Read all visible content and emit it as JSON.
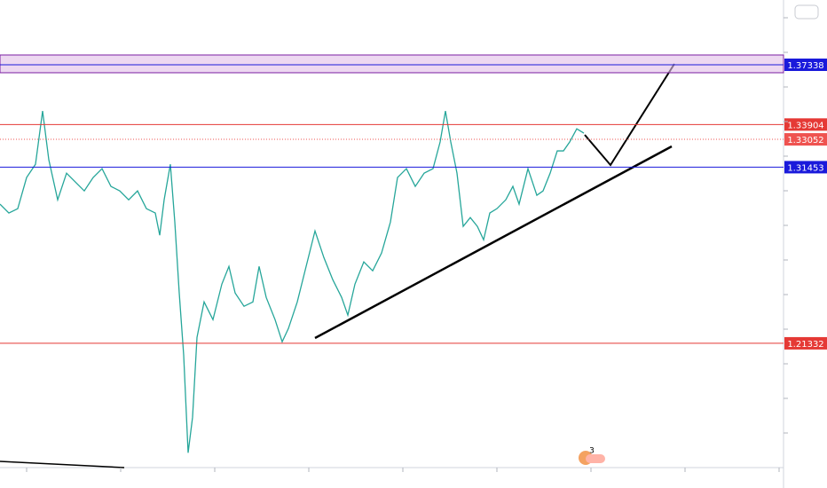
{
  "chart_data": {
    "type": "line",
    "x": [
      0,
      10,
      20,
      30,
      40,
      48,
      55,
      65,
      75,
      85,
      95,
      105,
      115,
      125,
      135,
      145,
      155,
      165,
      175,
      180,
      185,
      192,
      197,
      202,
      207,
      212,
      217,
      222,
      230,
      240,
      250,
      258,
      265,
      275,
      285,
      292,
      300,
      310,
      318,
      325,
      335,
      345,
      355,
      365,
      375,
      385,
      392,
      400,
      410,
      420,
      430,
      440,
      448,
      458,
      468,
      478,
      488,
      496,
      502,
      508,
      515,
      522,
      530,
      538,
      545,
      552,
      560,
      570,
      578,
      585,
      595,
      605,
      612,
      620,
      628,
      635,
      642,
      650,
      658
    ],
    "series": [
      {
        "color": "#26a69a",
        "values": [
          1.2933,
          1.2882,
          1.2907,
          1.3086,
          1.3162,
          1.3468,
          1.3188,
          1.2958,
          1.3111,
          1.306,
          1.3009,
          1.3086,
          1.3137,
          1.3035,
          1.3009,
          1.2958,
          1.3009,
          1.2907,
          1.2882,
          1.2754,
          1.2958,
          1.3162,
          1.283,
          1.2422,
          1.2065,
          1.1504,
          1.1708,
          1.2167,
          1.2371,
          1.2269,
          1.2473,
          1.2575,
          1.2422,
          1.2346,
          1.2371,
          1.2575,
          1.2397,
          1.2269,
          1.2142,
          1.2218,
          1.2371,
          1.2575,
          1.2779,
          1.2626,
          1.2499,
          1.2397,
          1.2295,
          1.2473,
          1.2601,
          1.255,
          1.2652,
          1.283,
          1.3086,
          1.3137,
          1.3035,
          1.3111,
          1.3137,
          1.329,
          1.3468,
          1.329,
          1.3111,
          1.2805,
          1.2856,
          1.2805,
          1.2728,
          1.2882,
          1.2907,
          1.2958,
          1.3035,
          1.2933,
          1.3137,
          1.2984,
          1.3009,
          1.3111,
          1.3239,
          1.3239,
          1.329,
          1.3366,
          1.3341
        ]
      }
    ],
    "xlim": [
      0,
      883
    ],
    "ylim": [
      1.1419,
      1.4106
    ],
    "zone": {
      "from": 1.3688,
      "to": 1.379,
      "color": "#e1bee7"
    },
    "levels": [
      {
        "value": 1.37338,
        "color": "#1a1adb",
        "style": "solid"
      },
      {
        "value": 1.33904,
        "color": "#e53935",
        "style": "solid"
      },
      {
        "value": 1.33052,
        "color": "#ef5350",
        "style": "dotted"
      },
      {
        "value": 1.31453,
        "color": "#1a1adb",
        "style": "solid"
      },
      {
        "value": 1.21332,
        "color": "#e53935",
        "style": "solid"
      }
    ],
    "badge": "3"
  }
}
